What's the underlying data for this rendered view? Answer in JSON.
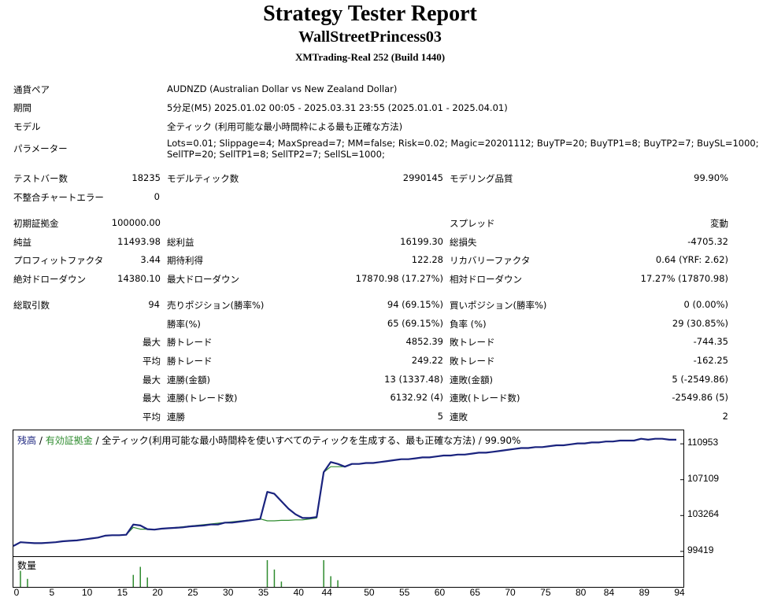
{
  "header": {
    "title": "Strategy Tester Report",
    "ea_name": "WallStreetPrincess03",
    "server": "XMTrading-Real 252 (Build 1440)"
  },
  "settings": {
    "symbol_label": "通貨ペア",
    "symbol_value": "AUDNZD (Australian Dollar vs New Zealand Dollar)",
    "period_label": "期間",
    "period_value": "5分足(M5) 2025.01.02 00:05 - 2025.03.31 23:55 (2025.01.01 - 2025.04.01)",
    "model_label": "モデル",
    "model_value": "全ティック (利用可能な最小時間枠による最も正確な方法)",
    "params_label": "パラメーター",
    "params_line1": "Lots=0.01; Slippage=4; MaxSpread=7; MM=false; Risk=0.02; Magic=20201112; BuyTP=20; BuyTP1=8; BuyTP2=7; BuySL=1000;",
    "params_line2": "SellTP=20; SellTP1=8; SellTP2=7; SellSL=1000;"
  },
  "stats": {
    "bars_label": "テストバー数",
    "bars_value": "18235",
    "ticks_label": "モデルティック数",
    "ticks_value": "2990145",
    "quality_label": "モデリング品質",
    "quality_value": "99.90%",
    "mismatch_label": "不整合チャートエラー",
    "mismatch_value": "0",
    "deposit_label": "初期証拠金",
    "deposit_value": "100000.00",
    "spread_label": "スプレッド",
    "spread_value": "変動",
    "net_label": "純益",
    "net_value": "11493.98",
    "gross_profit_label": "総利益",
    "gross_profit_value": "16199.30",
    "gross_loss_label": "総損失",
    "gross_loss_value": "-4705.32",
    "pf_label": "プロフィットファクタ",
    "pf_value": "3.44",
    "expected_label": "期待利得",
    "expected_value": "122.28",
    "recovery_label": "リカバリーファクタ",
    "recovery_value": "0.64 (YRF: 2.62)",
    "abs_dd_label": "絶対ドローダウン",
    "abs_dd_value": "14380.10",
    "max_dd_label": "最大ドローダウン",
    "max_dd_value": "17870.98 (17.27%)",
    "rel_dd_label": "相対ドローダウン",
    "rel_dd_value": "17.27% (17870.98)",
    "total_label": "総取引数",
    "total_value": "94",
    "short_label": "売りポジション(勝率%)",
    "short_value": "94 (69.15%)",
    "long_label": "買いポジション(勝率%)",
    "long_value": "0 (0.00%)",
    "winrate_label": "勝率(%)",
    "winrate_value": "65 (69.15%)",
    "lossrate_label": "負率 (%)",
    "lossrate_value": "29 (30.85%)",
    "max_prefix": "最大",
    "avg_prefix": "平均",
    "max_win_label": "勝トレード",
    "max_win_value": "4852.39",
    "max_loss_label": "敗トレード",
    "max_loss_value": "-744.35",
    "avg_win_label": "勝トレード",
    "avg_win_value": "249.22",
    "avg_loss_label": "敗トレード",
    "avg_loss_value": "-162.25",
    "cons_wins_amt_label": "連勝(金額)",
    "cons_wins_amt_value": "13 (1337.48)",
    "cons_loss_amt_label": "連敗(金額)",
    "cons_loss_amt_value": "5 (-2549.86)",
    "cons_profit_label": "連勝(トレード数)",
    "cons_profit_value": "6132.92 (4)",
    "cons_lossn_label": "連敗(トレード数)",
    "cons_lossn_value": "-2549.86 (5)",
    "avg_wins_label": "連勝",
    "avg_wins_value": "5",
    "avg_losses_label": "連敗",
    "avg_losses_value": "2"
  },
  "chart_legend": {
    "balance": "残高",
    "sep1": " / ",
    "equity": "有効証拠金",
    "sep2": " / ",
    "rest": "全ティック(利用可能な最小時間枠を使いすべてのティックを生成する、最も正確な方法) / 99.90%",
    "volume": "数量"
  },
  "colors": {
    "balance": "#1a237e",
    "equity": "#2e8b2e",
    "volume": "#2e8b2e"
  },
  "chart_data": {
    "type": "line",
    "x_ticks": [
      0,
      5,
      10,
      15,
      20,
      25,
      30,
      35,
      40,
      44,
      50,
      55,
      60,
      65,
      70,
      75,
      80,
      84,
      89,
      94
    ],
    "y_ticks": [
      99419,
      103264,
      107109,
      110953
    ],
    "xlim": [
      0,
      95
    ],
    "ylim": [
      98900,
      112400
    ],
    "series": [
      {
        "name": "残高",
        "x": [
          0,
          1,
          2,
          3,
          4,
          5,
          6,
          7,
          8,
          9,
          10,
          11,
          12,
          13,
          14,
          15,
          16,
          17,
          18,
          19,
          20,
          21,
          22,
          23,
          24,
          25,
          26,
          27,
          28,
          29,
          30,
          31,
          32,
          33,
          34,
          35,
          36,
          37,
          38,
          39,
          40,
          41,
          42,
          43,
          44,
          45,
          46,
          47,
          48,
          49,
          50,
          51,
          52,
          53,
          54,
          55,
          56,
          57,
          58,
          59,
          60,
          61,
          62,
          63,
          64,
          65,
          66,
          67,
          68,
          69,
          70,
          71,
          72,
          73,
          74,
          75,
          76,
          77,
          78,
          79,
          80,
          81,
          82,
          83,
          84,
          85,
          86,
          87,
          88,
          89,
          90,
          91,
          92,
          93,
          94
        ],
        "y": [
          100000,
          100400,
          100350,
          100300,
          100300,
          100350,
          100400,
          100500,
          100550,
          100600,
          100700,
          100800,
          100900,
          101100,
          101150,
          101150,
          101200,
          102300,
          102200,
          101800,
          101750,
          101850,
          101900,
          101950,
          102000,
          102100,
          102150,
          102200,
          102300,
          102300,
          102500,
          102500,
          102600,
          102700,
          102800,
          102900,
          105800,
          105600,
          104800,
          104000,
          103400,
          103000,
          103000,
          103100,
          107900,
          109000,
          108800,
          108500,
          108800,
          108800,
          108900,
          108900,
          109000,
          109100,
          109200,
          109300,
          109300,
          109400,
          109500,
          109500,
          109600,
          109700,
          109700,
          109800,
          109800,
          109900,
          110000,
          110000,
          110100,
          110200,
          110300,
          110400,
          110500,
          110500,
          110600,
          110600,
          110700,
          110800,
          110800,
          110900,
          111000,
          111000,
          111100,
          111100,
          111200,
          111200,
          111300,
          111300,
          111300,
          111500,
          111400,
          111500,
          111500,
          111400,
          111400
        ]
      },
      {
        "name": "有効証拠金",
        "x": [
          16,
          17,
          18,
          19,
          20,
          35,
          36,
          37,
          38,
          39,
          40,
          41,
          42,
          43,
          44,
          45,
          46,
          47,
          48
        ],
        "y": [
          101200,
          102000,
          101800,
          101800,
          101750,
          102900,
          102700,
          102700,
          102750,
          102750,
          102800,
          102800,
          102900,
          103000,
          107900,
          108500,
          108500,
          108500,
          108800
        ]
      }
    ],
    "volume": {
      "x": [
        1,
        2,
        17,
        18,
        19,
        36,
        37,
        38,
        44,
        45,
        46
      ],
      "y": [
        0.6,
        0.3,
        0.45,
        0.75,
        0.35,
        1.0,
        0.65,
        0.2,
        1.0,
        0.4,
        0.25
      ]
    }
  }
}
